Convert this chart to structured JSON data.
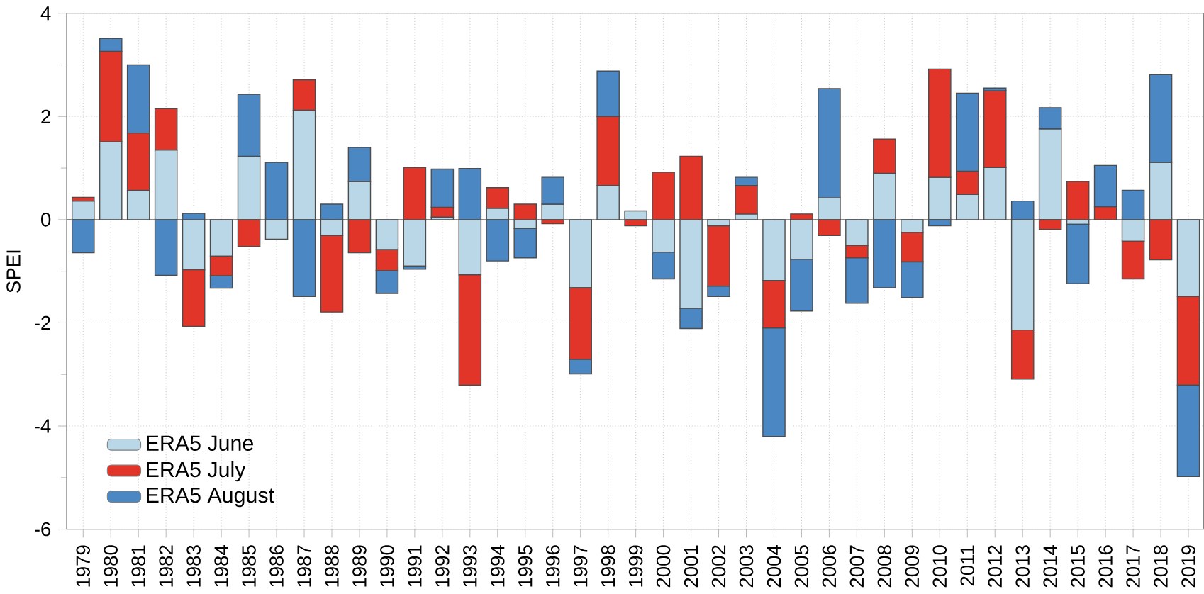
{
  "chart_data": {
    "type": "bar",
    "stacked": true,
    "ylabel": "SPEI",
    "categories": [
      "1979",
      "1980",
      "1981",
      "1982",
      "1983",
      "1984",
      "1985",
      "1986",
      "1987",
      "1988",
      "1989",
      "1990",
      "1991",
      "1992",
      "1993",
      "1994",
      "1995",
      "1996",
      "1997",
      "1998",
      "1999",
      "2000",
      "2001",
      "2002",
      "2003",
      "2004",
      "2005",
      "2006",
      "2007",
      "2008",
      "2009",
      "2010",
      "2011",
      "2012",
      "2013",
      "2014",
      "2015",
      "2016",
      "2017",
      "2018",
      "2019"
    ],
    "series": [
      {
        "name": "ERA5 June",
        "color": "#b9d7e6",
        "values": [
          0.36,
          1.51,
          0.57,
          1.35,
          -0.97,
          -0.71,
          1.23,
          -0.38,
          2.12,
          -0.31,
          0.74,
          -0.58,
          -0.9,
          0.05,
          -1.07,
          0.22,
          -0.17,
          0.3,
          -1.32,
          0.66,
          0.17,
          -0.63,
          -1.72,
          -0.12,
          0.11,
          -1.18,
          -0.77,
          0.42,
          -0.5,
          0.9,
          -0.25,
          0.82,
          0.49,
          1.01,
          -2.14,
          1.76,
          -0.09,
          0,
          -0.42,
          1.11,
          -1.49
        ]
      },
      {
        "name": "ERA5 July",
        "color": "#e2352a",
        "values": [
          0.07,
          1.75,
          1.11,
          0.8,
          -1.1,
          -0.38,
          -0.52,
          0,
          0.59,
          -1.48,
          -0.64,
          -0.41,
          1.01,
          0.19,
          -2.14,
          0.4,
          0.3,
          -0.08,
          -1.39,
          1.34,
          -0.12,
          0.92,
          1.23,
          -1.17,
          0.55,
          -0.92,
          0.11,
          -0.31,
          -0.24,
          0.66,
          -0.57,
          2.1,
          0.45,
          1.49,
          -0.95,
          -0.19,
          0.74,
          0.25,
          -0.73,
          -0.78,
          -1.72
        ]
      },
      {
        "name": "ERA5 August",
        "color": "#4a87c3",
        "values": [
          -0.64,
          0.25,
          1.32,
          -1.08,
          0.12,
          -0.24,
          1.2,
          1.11,
          -1.49,
          0.3,
          0.66,
          -0.44,
          -0.06,
          0.74,
          0.99,
          -0.8,
          -0.57,
          0.52,
          -0.28,
          0.88,
          0,
          -0.52,
          -0.39,
          -0.2,
          0.16,
          -2.1,
          -1.0,
          2.12,
          -0.88,
          -1.32,
          -0.69,
          -0.12,
          1.51,
          0.05,
          0.36,
          0.41,
          -1.15,
          0.8,
          0.57,
          1.7,
          -1.77
        ]
      }
    ],
    "ylim": [
      -6,
      4
    ],
    "yticks": [
      -6,
      -4,
      -2,
      0,
      2,
      4
    ],
    "grid": true,
    "legend": "bottom left"
  }
}
